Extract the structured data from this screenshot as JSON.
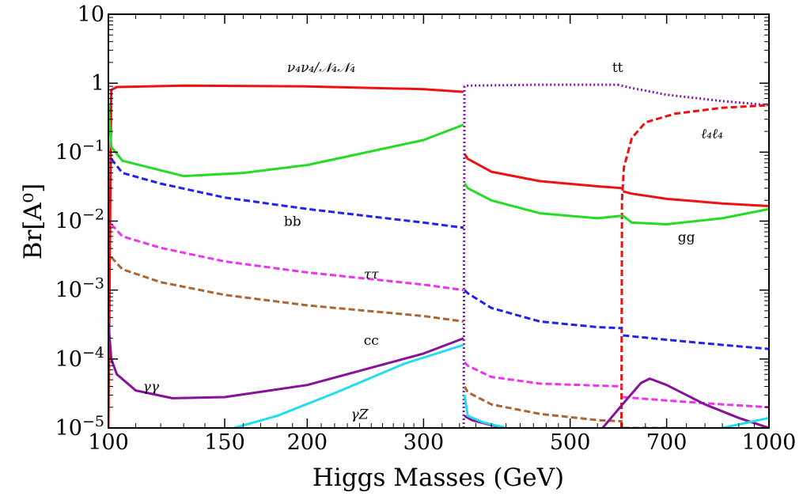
{
  "chart_data": {
    "type": "line",
    "title": "",
    "xlabel": "Higgs Masses (GeV)",
    "ylabel": "Br[A⁰]",
    "xscale": "log",
    "yscale": "log",
    "xlim": [
      100,
      1000
    ],
    "ylim": [
      1e-05,
      10
    ],
    "x_ticks": [
      100,
      150,
      200,
      300,
      500,
      700,
      1000
    ],
    "x_tick_labels": [
      "100",
      "150",
      "200",
      "300",
      "500",
      "700",
      "1000"
    ],
    "y_ticks": [
      1e-05,
      0.0001,
      0.001,
      0.01,
      0.1,
      1,
      10
    ],
    "y_tick_labels": [
      {
        "base": "10",
        "exp": "−5"
      },
      {
        "base": "10",
        "exp": "−4"
      },
      {
        "base": "10",
        "exp": "−3"
      },
      {
        "base": "10",
        "exp": "−2"
      },
      {
        "base": "10",
        "exp": "−1"
      },
      {
        "base": "1",
        "exp": ""
      },
      {
        "base": "10",
        "exp": ""
      }
    ],
    "grid": false,
    "series": [
      {
        "name": "ν₄ν₄/𝒩₄𝒩₄",
        "label_at": [
          210,
          1.45
        ],
        "color": "#ee1111",
        "dash": "solid",
        "segments": [
          [
            [
              100,
              1e-05
            ],
            [
              101,
              0.8
            ],
            [
              103,
              0.88
            ],
            [
              130,
              0.92
            ],
            [
              200,
              0.9
            ],
            [
              300,
              0.82
            ],
            [
              345,
              0.75
            ]
          ],
          [
            [
              346,
              0.095
            ],
            [
              350,
              0.08
            ],
            [
              380,
              0.052
            ],
            [
              450,
              0.038
            ],
            [
              550,
              0.032
            ],
            [
              600,
              0.03
            ]
          ],
          [
            [
              601,
              0.027
            ],
            [
              620,
              0.025
            ],
            [
              700,
              0.021
            ],
            [
              850,
              0.018
            ],
            [
              1000,
              0.0165
            ]
          ]
        ]
      },
      {
        "name": "tt",
        "label_at": [
          590,
          1.45
        ],
        "color": "#8811bb",
        "dash": "dotted",
        "segments": [
          [
            [
              345,
              1e-05
            ],
            [
              346,
              0.9
            ],
            [
              350,
              0.92
            ],
            [
              450,
              0.95
            ],
            [
              590,
              0.95
            ]
          ],
          [
            [
              590,
              0.95
            ],
            [
              620,
              0.85
            ],
            [
              700,
              0.68
            ],
            [
              850,
              0.55
            ],
            [
              1000,
              0.48
            ]
          ]
        ]
      },
      {
        "name": "ℓ₄ℓ₄",
        "label_at": [
          820,
          0.16
        ],
        "color": "#ee1111",
        "dash": "dashed",
        "segments": [
          [
            [
              598,
              1e-05
            ],
            [
              599,
              0.02
            ],
            [
              603,
              0.06
            ],
            [
              620,
              0.16
            ],
            [
              650,
              0.27
            ],
            [
              720,
              0.36
            ],
            [
              850,
              0.44
            ],
            [
              1000,
              0.48
            ]
          ]
        ]
      },
      {
        "name": "gg",
        "label_at": [
          750,
          0.005
        ],
        "color": "#22dd22",
        "dash": "solid",
        "segments": [
          [
            [
              100,
              0.5
            ],
            [
              101,
              0.12
            ],
            [
              105,
              0.075
            ],
            [
              130,
              0.045
            ],
            [
              160,
              0.05
            ],
            [
              200,
              0.065
            ],
            [
              300,
              0.15
            ],
            [
              345,
              0.25
            ]
          ],
          [
            [
              346,
              0.035
            ],
            [
              350,
              0.03
            ],
            [
              380,
              0.02
            ],
            [
              450,
              0.013
            ],
            [
              550,
              0.011
            ],
            [
              600,
              0.012
            ]
          ],
          [
            [
              601,
              0.012
            ],
            [
              620,
              0.0095
            ],
            [
              700,
              0.009
            ],
            [
              850,
              0.011
            ],
            [
              1000,
              0.015
            ]
          ]
        ]
      },
      {
        "name": "bb",
        "label_at": [
          190,
          0.0085
        ],
        "color": "#2222ee",
        "dash": "dashed",
        "segments": [
          [
            [
              101,
              0.08
            ],
            [
              105,
              0.05
            ],
            [
              120,
              0.035
            ],
            [
              150,
              0.022
            ],
            [
              200,
              0.015
            ],
            [
              300,
              0.0095
            ],
            [
              345,
              0.008
            ]
          ],
          [
            [
              346,
              0.001
            ],
            [
              350,
              0.0009
            ],
            [
              380,
              0.00055
            ],
            [
              450,
              0.00035
            ],
            [
              550,
              0.00029
            ],
            [
              600,
              0.00028
            ]
          ],
          [
            [
              601,
              0.00022
            ],
            [
              700,
              0.00019
            ],
            [
              850,
              0.00016
            ],
            [
              1000,
              0.00014
            ]
          ]
        ]
      },
      {
        "name": "ττ",
        "label_at": [
          250,
          0.00145
        ],
        "color": "#ee33ee",
        "dash": "dashed",
        "segments": [
          [
            [
              101,
              0.009
            ],
            [
              105,
              0.006
            ],
            [
              120,
              0.0041
            ],
            [
              150,
              0.0026
            ],
            [
              200,
              0.0018
            ],
            [
              300,
              0.0012
            ],
            [
              345,
              0.001
            ]
          ],
          [
            [
              346,
              9e-05
            ],
            [
              350,
              8e-05
            ],
            [
              380,
              5.5e-05
            ],
            [
              450,
              4.4e-05
            ],
            [
              600,
              4e-05
            ]
          ],
          [
            [
              601,
              2.8e-05
            ],
            [
              700,
              2.5e-05
            ],
            [
              850,
              2.2e-05
            ],
            [
              1000,
              2e-05
            ]
          ]
        ]
      },
      {
        "name": "cc",
        "label_at": [
          250,
          0.00016
        ],
        "color": "#aa6633",
        "dash": "dashed",
        "segments": [
          [
            [
              101,
              0.003
            ],
            [
              105,
              0.002
            ],
            [
              120,
              0.0013
            ],
            [
              150,
              0.00085
            ],
            [
              200,
              0.0006
            ],
            [
              300,
              0.00042
            ],
            [
              345,
              0.00035
            ]
          ],
          [
            [
              346,
              4e-05
            ],
            [
              350,
              3.3e-05
            ],
            [
              380,
              2.2e-05
            ],
            [
              450,
              1.6e-05
            ],
            [
              550,
              1.3e-05
            ],
            [
              600,
              1.25e-05
            ]
          ],
          [
            [
              601,
              1e-05
            ],
            [
              700,
              1e-05
            ]
          ]
        ]
      },
      {
        "name": "γγ",
        "label_at": [
          116,
          3.4e-05
        ],
        "color": "#881199",
        "dash": "solid",
        "segments": [
          [
            [
              100,
              0.00035
            ],
            [
              101,
              0.0001
            ],
            [
              103,
              6e-05
            ],
            [
              110,
              3.5e-05
            ],
            [
              125,
              2.7e-05
            ],
            [
              150,
              2.8e-05
            ],
            [
              200,
              4.2e-05
            ],
            [
              300,
              0.00012
            ],
            [
              345,
              0.0002
            ]
          ],
          [
            [
              346,
              1.5e-05
            ],
            [
              355,
              1.3e-05
            ],
            [
              380,
              1.1e-05
            ],
            [
              400,
              1e-05
            ]
          ],
          [
            [
              560,
              1e-05
            ],
            [
              600,
              2.2e-05
            ],
            [
              640,
              4.5e-05
            ],
            [
              660,
              5.2e-05
            ],
            [
              700,
              4.2e-05
            ],
            [
              800,
              2.2e-05
            ],
            [
              900,
              1.4e-05
            ],
            [
              1000,
              1e-05
            ]
          ]
        ]
      },
      {
        "name": "γZ",
        "label_at": [
          240,
          1.35e-05
        ],
        "color": "#22ddee",
        "dash": "solid",
        "segments": [
          [
            [
              155,
              1e-05
            ],
            [
              180,
              1.5e-05
            ],
            [
              220,
              3.2e-05
            ],
            [
              280,
              8.5e-05
            ],
            [
              345,
              0.00016
            ]
          ],
          [
            [
              346,
              3e-05
            ],
            [
              350,
              1.5e-05
            ],
            [
              370,
              1.2e-05
            ],
            [
              400,
              1e-05
            ]
          ],
          [
            [
              850,
              1e-05
            ],
            [
              1000,
              1.4e-05
            ]
          ]
        ]
      }
    ]
  }
}
